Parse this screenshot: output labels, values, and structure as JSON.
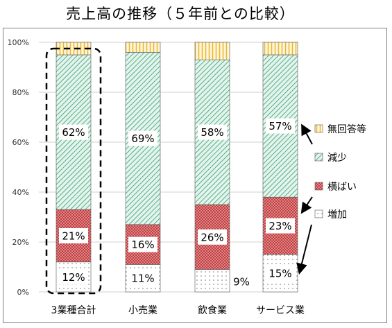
{
  "title": "売上高の推移（５年前との比較）",
  "chart_data": {
    "type": "bar",
    "stacked": "percent",
    "title": "売上高の推移（５年前との比較）",
    "categories": [
      "3業種合計",
      "小売業",
      "飲食業",
      "サービス業"
    ],
    "ylim": [
      0,
      100
    ],
    "yticks": [
      "0%",
      "20%",
      "40%",
      "60%",
      "80%",
      "100%"
    ],
    "grid": true,
    "legend_position": "right",
    "series": [
      {
        "name": "増加",
        "values": [
          12,
          11,
          9,
          15
        ],
        "color": "#ffffff",
        "pattern": "dots"
      },
      {
        "name": "横ばい",
        "values": [
          21,
          16,
          26,
          23
        ],
        "color": "#c0393b",
        "pattern": "crosshatch"
      },
      {
        "name": "減少",
        "values": [
          62,
          69,
          58,
          57
        ],
        "color": "#2e9e6e",
        "pattern": "diagonal"
      },
      {
        "name": "無回答等",
        "values": [
          5,
          4,
          7,
          5
        ],
        "color": "#e8b830",
        "pattern": "vertical"
      }
    ],
    "data_labels": [
      [
        "12%",
        "11%",
        "9%",
        "15%"
      ],
      [
        "21%",
        "16%",
        "26%",
        "23%"
      ],
      [
        "62%",
        "69%",
        "58%",
        "57%"
      ],
      [
        null,
        null,
        null,
        null
      ]
    ],
    "highlight_category": "3業種合計"
  }
}
